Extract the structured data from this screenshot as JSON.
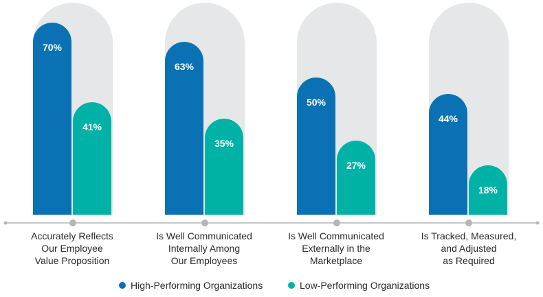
{
  "chart_data": {
    "type": "bar",
    "title": "",
    "xlabel": "",
    "ylabel": "",
    "ylim": [
      0,
      100
    ],
    "categories": [
      "Accurately Reflects\nOur Employee\nValue Proposition",
      "Is Well Communicated\nInternally Among\nOur Employees",
      "Is Well Communicated\nExternally in the\nMarketplace",
      "Is Tracked, Measured,\nand Adjusted\nas Required"
    ],
    "series": [
      {
        "name": "High-Performing Organizations",
        "color": "#0a72b4",
        "values": [
          70,
          63,
          50,
          44
        ],
        "labels": [
          "70%",
          "63%",
          "50%",
          "44%"
        ]
      },
      {
        "name": "Low-Performing Organizations",
        "color": "#00b2a5",
        "values": [
          41,
          35,
          27,
          18
        ],
        "labels": [
          "41%",
          "35%",
          "27%",
          "18%"
        ]
      }
    ],
    "background_color": "#e6e7e9",
    "axis_color": "#b5b5b5",
    "legend_position": "bottom-center"
  }
}
